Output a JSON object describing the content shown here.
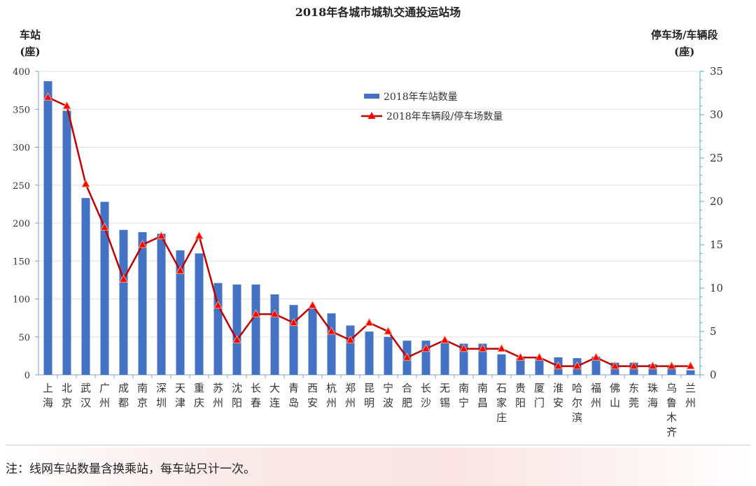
{
  "chart_data": {
    "type": "bar+line",
    "title": "2018年各城市城轨交通投运站场",
    "ylabel_left": [
      "车站",
      "(座)"
    ],
    "ylabel_right": [
      "停车场/车辆段",
      "(座)"
    ],
    "ylim_left": [
      0,
      400
    ],
    "yticks_left": [
      0,
      50,
      100,
      150,
      200,
      250,
      300,
      350,
      400
    ],
    "ylim_right": [
      0,
      35
    ],
    "yticks_right": [
      0,
      5,
      10,
      15,
      20,
      25,
      30,
      35
    ],
    "grid": true,
    "legend_position": "top-center",
    "categories": [
      "上海",
      "北京",
      "武汉",
      "广州",
      "成都",
      "南京",
      "深圳",
      "天津",
      "重庆",
      "苏州",
      "沈阳",
      "长春",
      "大连",
      "青岛",
      "西安",
      "杭州",
      "郑州",
      "昆明",
      "宁波",
      "合肥",
      "长沙",
      "无锡",
      "南宁",
      "南昌",
      "石家庄",
      "贵阳",
      "厦门",
      "淮安",
      "哈尔滨",
      "福州",
      "佛山",
      "东莞",
      "珠海",
      "乌鲁木齐",
      "兰州"
    ],
    "series": [
      {
        "name": "2018年车站数量",
        "type": "bar",
        "axis": "left",
        "color": "#4472c4",
        "values": [
          387,
          348,
          233,
          228,
          191,
          188,
          186,
          164,
          160,
          121,
          119,
          119,
          106,
          92,
          87,
          81,
          65,
          57,
          50,
          45,
          45,
          42,
          41,
          41,
          27,
          22,
          22,
          23,
          22,
          24,
          16,
          16,
          14,
          12,
          6
        ]
      },
      {
        "name": "2018年车辆段/停车场数量",
        "type": "line",
        "axis": "right",
        "color": "#c00000",
        "marker_color": "#ff0000",
        "values": [
          32,
          31,
          22,
          17,
          11,
          15,
          16,
          12,
          16,
          8,
          4,
          7,
          7,
          6,
          8,
          5,
          4,
          6,
          5,
          2,
          3,
          4,
          3,
          3,
          3,
          2,
          2,
          1,
          1,
          2,
          1,
          1,
          1,
          1,
          1
        ]
      }
    ]
  },
  "footnote": "注：线网车站数量含换乘站，每车站只计一次。"
}
